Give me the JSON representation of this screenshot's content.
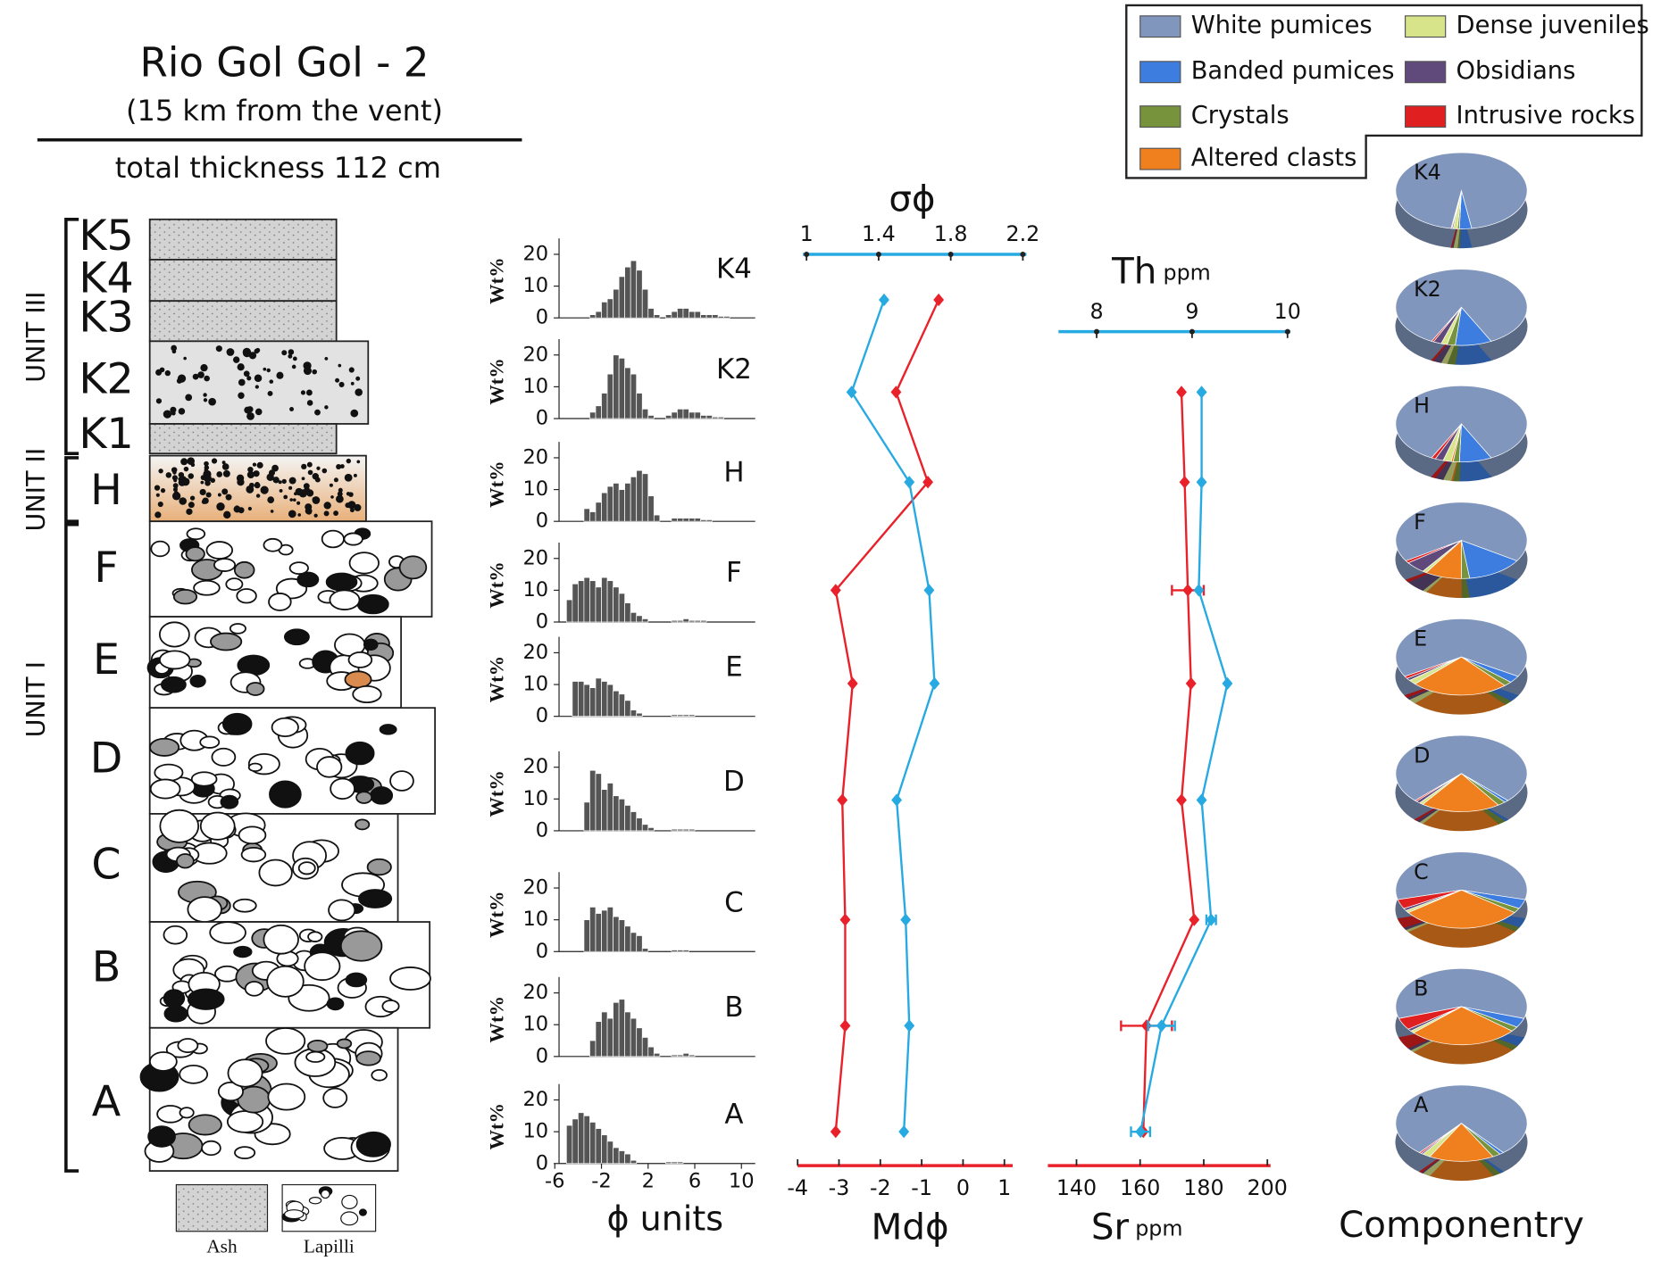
{
  "column": {
    "title": "Rio Gol Gol - 2",
    "subtitle": "(15 km from the vent)",
    "thickness": "total thickness 112 cm",
    "units": [
      "UNIT III",
      "UNIT II",
      "UNIT I"
    ],
    "layers": [
      "K5",
      "K4",
      "K3",
      "K2",
      "K1",
      "H",
      "F",
      "E",
      "D",
      "C",
      "B",
      "A"
    ],
    "legend": [
      "Ash",
      "Lapilli"
    ]
  },
  "chart_data": [
    {
      "type": "histogram",
      "xlabel": "ϕ units",
      "ylabel": "Wt%",
      "color": "#555555",
      "bins": [
        -5,
        -4.5,
        -4,
        -3.5,
        -3,
        -2.5,
        -2,
        -1.5,
        -1,
        -0.5,
        0,
        0.5,
        1,
        1.5,
        2,
        2.5,
        3,
        3.5,
        4,
        4.5,
        5,
        5.5,
        6,
        6.5,
        7,
        7.5,
        8,
        8.5,
        9,
        9.5,
        10
      ],
      "xlim": [
        -6.5,
        11
      ],
      "xticks": [
        -6,
        -2,
        2,
        6,
        10
      ],
      "ylim": [
        0,
        25
      ],
      "yticks": [
        0,
        10,
        20
      ],
      "panels": [
        {
          "label": "K4",
          "values": [
            0,
            0,
            0,
            0,
            1,
            2,
            5,
            6,
            9,
            13,
            16,
            18,
            15,
            9,
            3,
            1,
            0,
            1,
            2,
            3,
            3,
            2,
            2,
            1,
            1,
            1,
            0.5,
            0.5,
            0,
            0
          ]
        },
        {
          "label": "K2",
          "values": [
            0,
            0,
            0,
            0,
            2,
            4,
            8,
            14,
            20,
            19,
            16,
            14,
            8,
            3,
            1,
            0,
            0,
            1,
            2,
            3,
            3,
            2,
            2,
            1,
            1,
            0.5,
            0.5,
            0,
            0,
            0
          ]
        },
        {
          "label": "H",
          "values": [
            0,
            0,
            0,
            4,
            3,
            6,
            9,
            11,
            12,
            10,
            12,
            14,
            16,
            15,
            8,
            2,
            0,
            0,
            1,
            1,
            1,
            1,
            1,
            0.5,
            0.5,
            0,
            0,
            0,
            0,
            0
          ]
        },
        {
          "label": "F",
          "values": [
            7,
            12,
            13,
            14,
            13,
            11,
            14,
            13,
            11,
            9,
            6,
            3,
            2,
            1,
            0,
            0,
            0,
            0,
            0.5,
            0.5,
            1,
            0.5,
            0.5,
            0.5,
            0,
            0,
            0,
            0,
            0,
            0
          ]
        },
        {
          "label": "E",
          "values": [
            0,
            11,
            11,
            10,
            9,
            12,
            11,
            10,
            8,
            7,
            5,
            2,
            1,
            0,
            0,
            0,
            0,
            0,
            0.5,
            0.5,
            0.5,
            0.5,
            0,
            0,
            0,
            0,
            0,
            0,
            0,
            0
          ]
        },
        {
          "label": "D",
          "values": [
            0,
            0,
            0,
            9,
            19,
            18,
            13,
            15,
            11,
            10,
            8,
            6,
            4,
            2,
            1,
            0,
            0,
            0,
            0.5,
            0.5,
            0.5,
            0.5,
            0,
            0,
            0,
            0,
            0,
            0,
            0,
            0
          ]
        },
        {
          "label": "C",
          "values": [
            0,
            0,
            0,
            10,
            14,
            12,
            13,
            14,
            11,
            10,
            8,
            6,
            5,
            1,
            0,
            0,
            0,
            0,
            0.5,
            0.5,
            0.5,
            0,
            0,
            0,
            0,
            0,
            0,
            0,
            0,
            0
          ]
        },
        {
          "label": "B",
          "values": [
            0,
            0,
            0,
            0,
            5,
            11,
            14,
            12,
            17,
            18,
            14,
            12,
            9,
            6,
            3,
            1,
            0,
            0,
            0.5,
            0.5,
            1,
            0.5,
            0,
            0,
            0,
            0,
            0,
            0,
            0,
            0
          ]
        },
        {
          "label": "A",
          "values": [
            12,
            14,
            16,
            15,
            13,
            11,
            9,
            7,
            5,
            4,
            3,
            1,
            0,
            0,
            0,
            0,
            0,
            0.5,
            0.5,
            0.5,
            0,
            0,
            0,
            0,
            0,
            0,
            0,
            0,
            0,
            0
          ]
        }
      ]
    },
    {
      "type": "profile",
      "xlabel": "Mdϕ",
      "x2label": "σϕ",
      "xlim": [
        -4,
        1.2
      ],
      "xticks": [
        -4,
        -3,
        -2,
        -1,
        0,
        1
      ],
      "x2lim": [
        0.98,
        2.22
      ],
      "x2ticks": [
        1,
        1.4,
        1.8,
        2.2
      ],
      "series": [
        {
          "color": "#e8212a",
          "axis": "x",
          "values": [
            -0.59,
            -1.62,
            -0.85,
            -3.08,
            -2.67,
            -2.92,
            -2.85,
            -2.85,
            -3.08
          ]
        },
        {
          "color": "#27aae1",
          "axis": "x2",
          "values": [
            1.43,
            1.25,
            1.57,
            1.68,
            1.71,
            1.5,
            1.55,
            1.57,
            1.54
          ]
        }
      ]
    },
    {
      "type": "profile",
      "xlabel": "Sr",
      "xunit": "ppm",
      "x2label": "Th",
      "x2unit": "ppm",
      "xlim": [
        131,
        201
      ],
      "xticks": [
        140,
        160,
        180,
        200
      ],
      "x2lim": [
        7.6,
        10.03
      ],
      "x2ticks": [
        8,
        9,
        10
      ],
      "series": [
        {
          "color": "#e8212a",
          "axis": "x",
          "values": [
            null,
            173,
            174,
            175,
            176,
            173,
            177,
            162,
            161
          ],
          "errors": [
            null,
            null,
            null,
            5,
            null,
            null,
            null,
            8,
            null
          ]
        },
        {
          "color": "#27aae1",
          "axis": "x2",
          "values": [
            null,
            9.1,
            9.1,
            9.07,
            9.37,
            9.1,
            9.2,
            8.68,
            8.46
          ],
          "errors": [
            null,
            null,
            null,
            null,
            null,
            null,
            0.05,
            0.14,
            0.1
          ]
        }
      ]
    },
    {
      "type": "pie",
      "title": "Componentry",
      "components": [
        {
          "name": "White pumices",
          "color": "#8096bd"
        },
        {
          "name": "Banded pumices",
          "color": "#3d7de0"
        },
        {
          "name": "Crystals",
          "color": "#77933c"
        },
        {
          "name": "Altered clasts",
          "color": "#f07f1e"
        },
        {
          "name": "Dense juveniles",
          "color": "#d7e48a"
        },
        {
          "name": "Obsidians",
          "color": "#604a7b"
        },
        {
          "name": "Intrusive rocks",
          "color": "#e02020"
        }
      ],
      "panels": [
        {
          "label": "K4",
          "values": [
            95,
            3,
            0.5,
            0,
            1,
            0.3,
            0.2
          ]
        },
        {
          "label": "K2",
          "values": [
            85,
            9,
            2,
            0,
            1.5,
            2,
            0.5
          ]
        },
        {
          "label": "H",
          "values": [
            85,
            8,
            1.5,
            0.5,
            2,
            2,
            1
          ]
        },
        {
          "label": "F",
          "values": [
            68,
            14,
            2,
            9,
            1,
            5,
            1
          ]
        },
        {
          "label": "E",
          "values": [
            67,
            3,
            2,
            24,
            2,
            1,
            1
          ]
        },
        {
          "label": "D",
          "values": [
            75,
            1,
            2,
            19.5,
            1,
            1,
            0.5
          ]
        },
        {
          "label": "C",
          "values": [
            58,
            4,
            2,
            30,
            1,
            1,
            4
          ]
        },
        {
          "label": "B",
          "values": [
            60,
            4,
            2,
            27,
            1,
            1,
            5
          ]
        },
        {
          "label": "A",
          "values": [
            78,
            1,
            2,
            16,
            2,
            0.5,
            0.5
          ]
        }
      ]
    }
  ]
}
